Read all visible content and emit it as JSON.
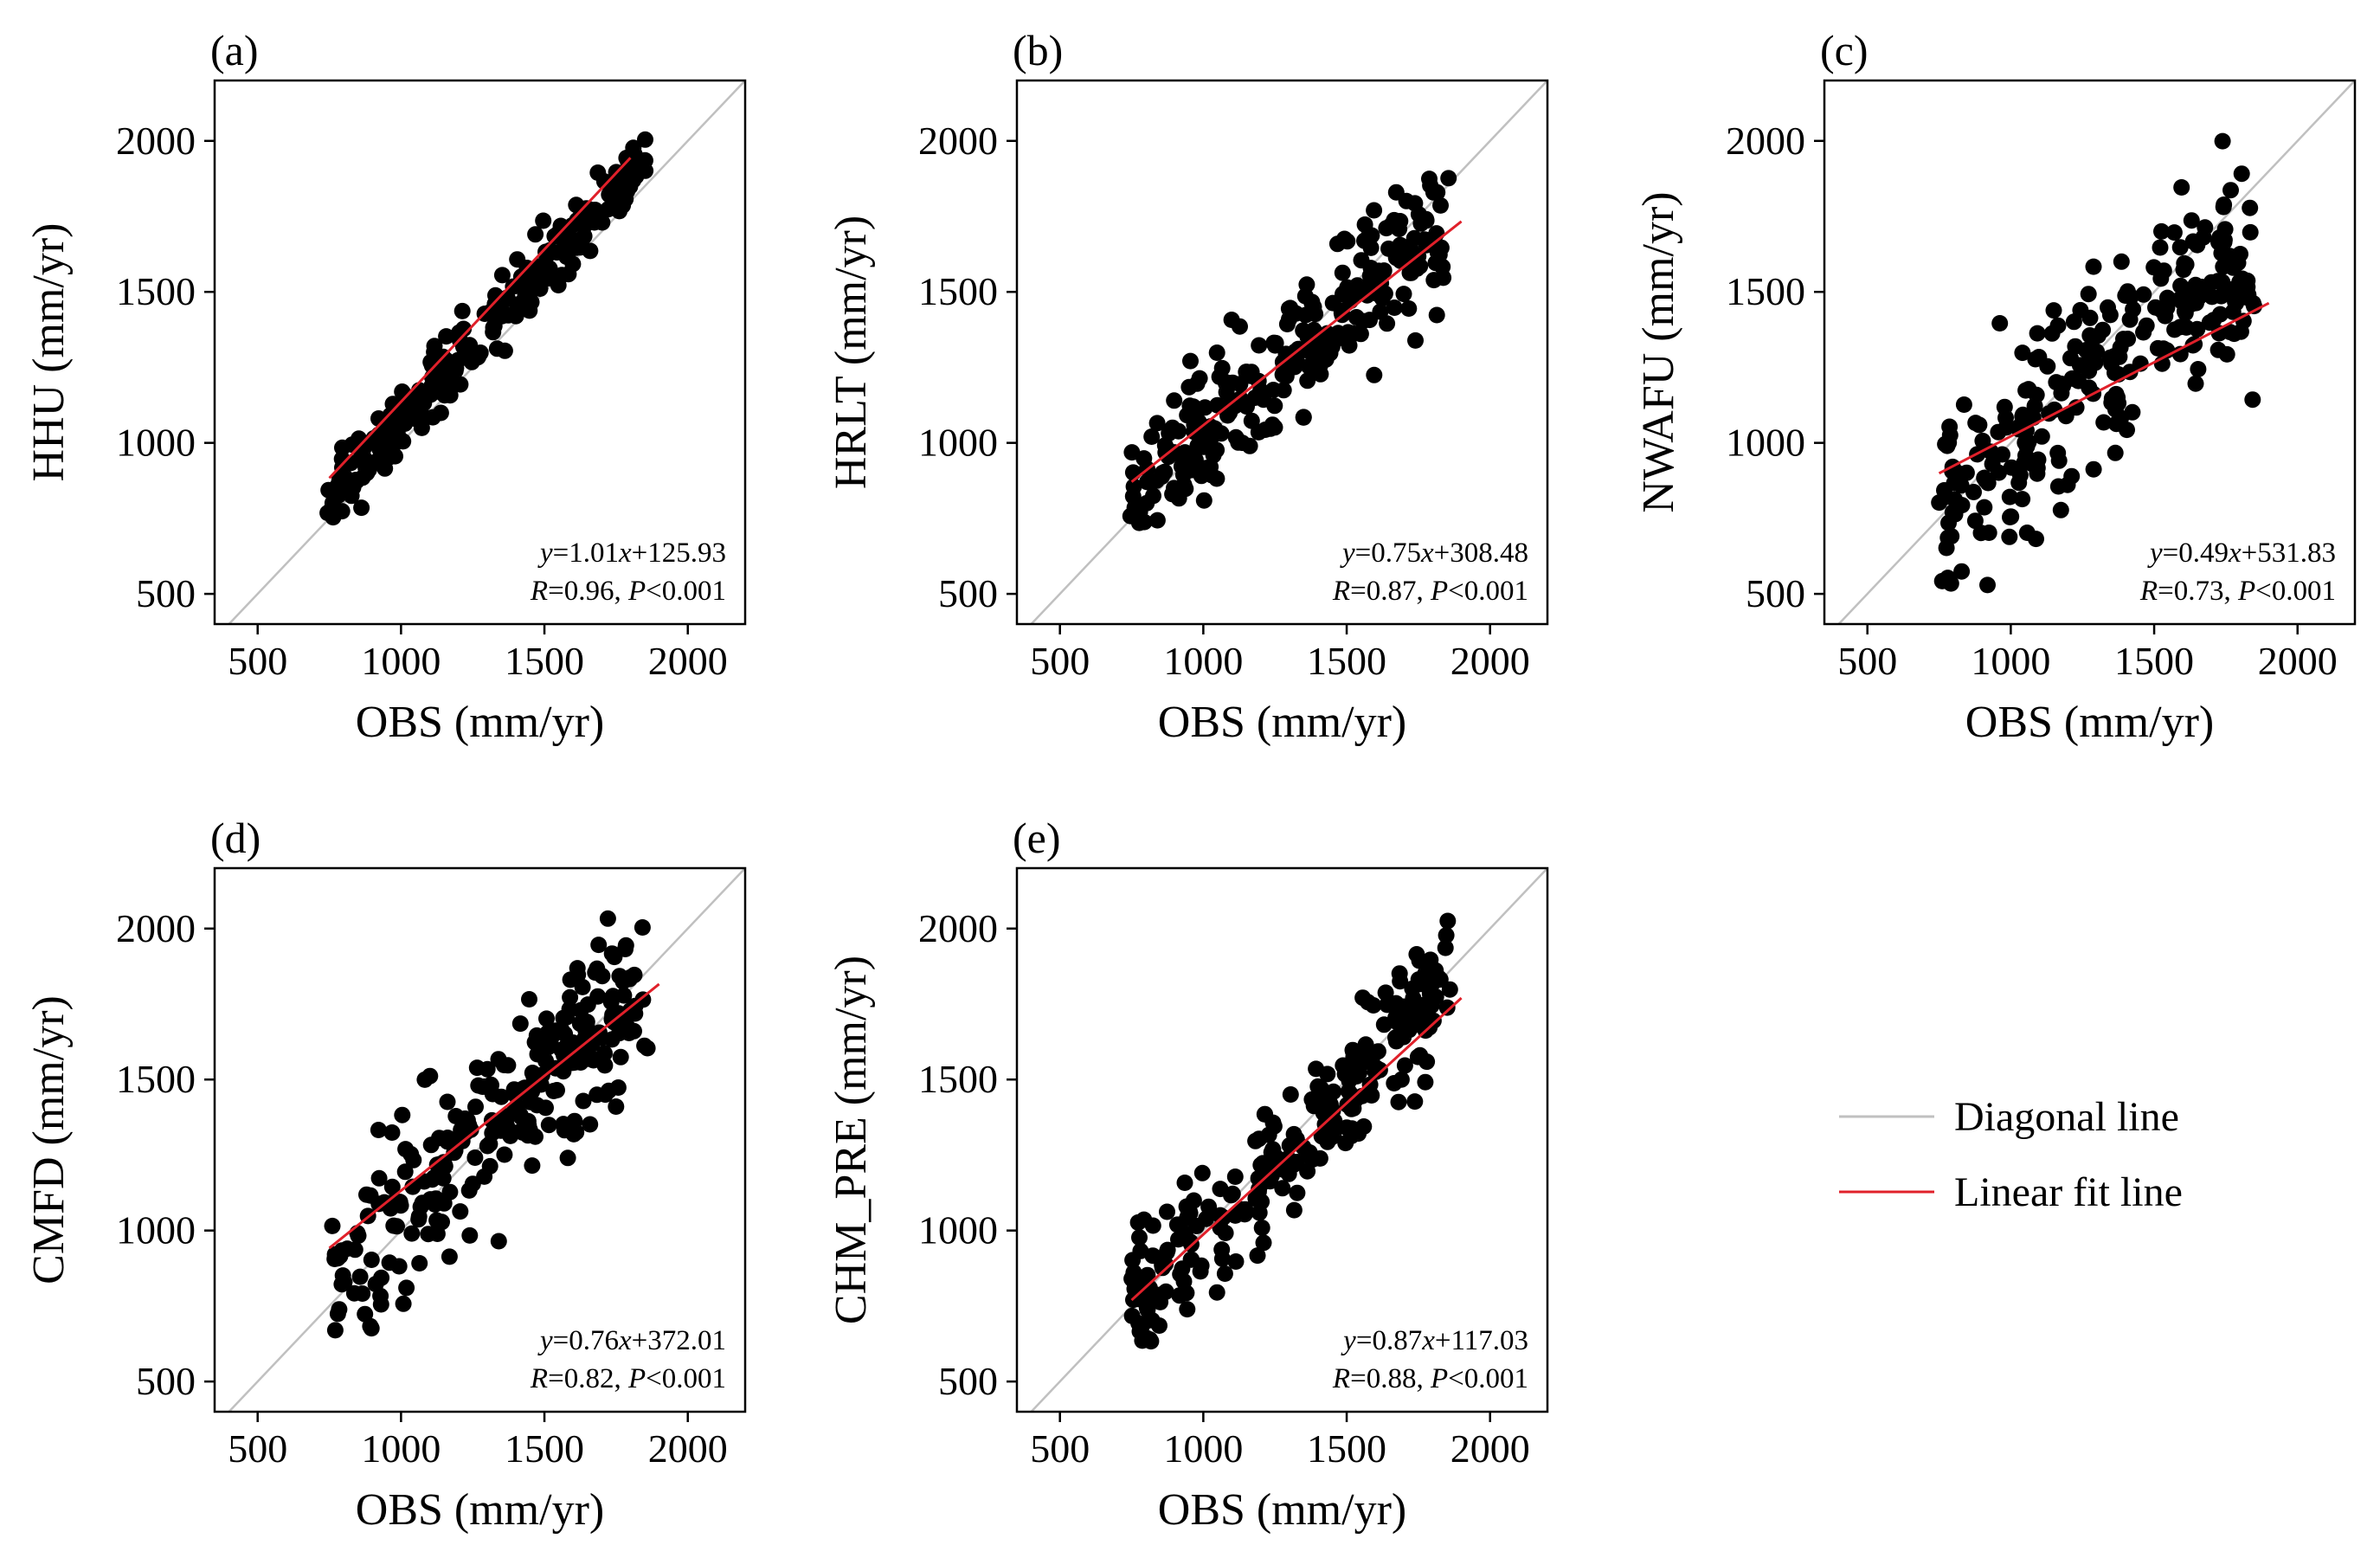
{
  "legend": {
    "diagonal_label": "Diagonal line",
    "fit_label": "Linear fit line",
    "diagonal_color": "#c0c0c0",
    "fit_color": "#e0202a"
  },
  "chart_data": [
    {
      "type": "scatter",
      "panel_label": "(a)",
      "xlabel": "OBS (mm/yr)",
      "ylabel": "HHU (mm/yr)",
      "xlim": [
        350,
        2200
      ],
      "ylim": [
        400,
        2200
      ],
      "xticks": [
        500,
        1000,
        1500,
        2000
      ],
      "yticks": [
        500,
        1000,
        1500,
        2000
      ],
      "fit": {
        "slope": 1.01,
        "intercept": 125.93,
        "x_range": [
          750,
          1800
        ]
      },
      "eq_text": {
        "y": "y",
        "eq1": "=1.01",
        "x": "x",
        "eq2": "+125.93",
        "r_label": "R",
        "r_value": "=0.96, ",
        "p_label": "P",
        "p_value": "<0.001"
      }
    },
    {
      "type": "scatter",
      "panel_label": "(b)",
      "xlabel": "OBS (mm/yr)",
      "ylabel": "HRLT (mm/yr)",
      "xlim": [
        350,
        2200
      ],
      "ylim": [
        400,
        2200
      ],
      "xticks": [
        500,
        1000,
        1500,
        2000
      ],
      "yticks": [
        500,
        1000,
        1500,
        2000
      ],
      "fit": {
        "slope": 0.75,
        "intercept": 308.48,
        "x_range": [
          750,
          1900
        ]
      },
      "eq_text": {
        "y": "y",
        "eq1": "=0.75",
        "x": "x",
        "eq2": "+308.48",
        "r_label": "R",
        "r_value": "=0.87, ",
        "p_label": "P",
        "p_value": "<0.001"
      }
    },
    {
      "type": "scatter",
      "panel_label": "(c)",
      "xlabel": "OBS (mm/yr)",
      "ylabel": "NWAFU (mm/yr)",
      "xlim": [
        350,
        2200
      ],
      "ylim": [
        400,
        2200
      ],
      "xticks": [
        500,
        1000,
        1500,
        2000
      ],
      "yticks": [
        500,
        1000,
        1500,
        2000
      ],
      "fit": {
        "slope": 0.49,
        "intercept": 531.83,
        "x_range": [
          750,
          1900
        ]
      },
      "eq_text": {
        "y": "y",
        "eq1": "=0.49",
        "x": "x",
        "eq2": "+531.83",
        "r_label": "R",
        "r_value": "=0.73, ",
        "p_label": "P",
        "p_value": "<0.001"
      }
    },
    {
      "type": "scatter",
      "panel_label": "(d)",
      "xlabel": "OBS (mm/yr)",
      "ylabel": "CMFD (mm/yr)",
      "xlim": [
        350,
        2200
      ],
      "ylim": [
        400,
        2200
      ],
      "xticks": [
        500,
        1000,
        1500,
        2000
      ],
      "yticks": [
        500,
        1000,
        1500,
        2000
      ],
      "fit": {
        "slope": 0.76,
        "intercept": 372.01,
        "x_range": [
          750,
          1900
        ]
      },
      "eq_text": {
        "y": "y",
        "eq1": "=0.76",
        "x": "x",
        "eq2": "+372.01",
        "r_label": "R",
        "r_value": "=0.82, ",
        "p_label": "P",
        "p_value": "<0.001"
      }
    },
    {
      "type": "scatter",
      "panel_label": "(e)",
      "xlabel": "OBS (mm/yr)",
      "ylabel": "CHM_PRE (mm/yr)",
      "xlim": [
        350,
        2200
      ],
      "ylim": [
        400,
        2200
      ],
      "xticks": [
        500,
        1000,
        1500,
        2000
      ],
      "yticks": [
        500,
        1000,
        1500,
        2000
      ],
      "fit": {
        "slope": 0.87,
        "intercept": 117.03,
        "x_range": [
          750,
          1900
        ]
      },
      "eq_text": {
        "y": "y",
        "eq1": "=0.87",
        "x": "x",
        "eq2": "+117.03",
        "r_label": "R",
        "r_value": "=0.88, ",
        "p_label": "P",
        "p_value": "<0.001"
      }
    }
  ]
}
